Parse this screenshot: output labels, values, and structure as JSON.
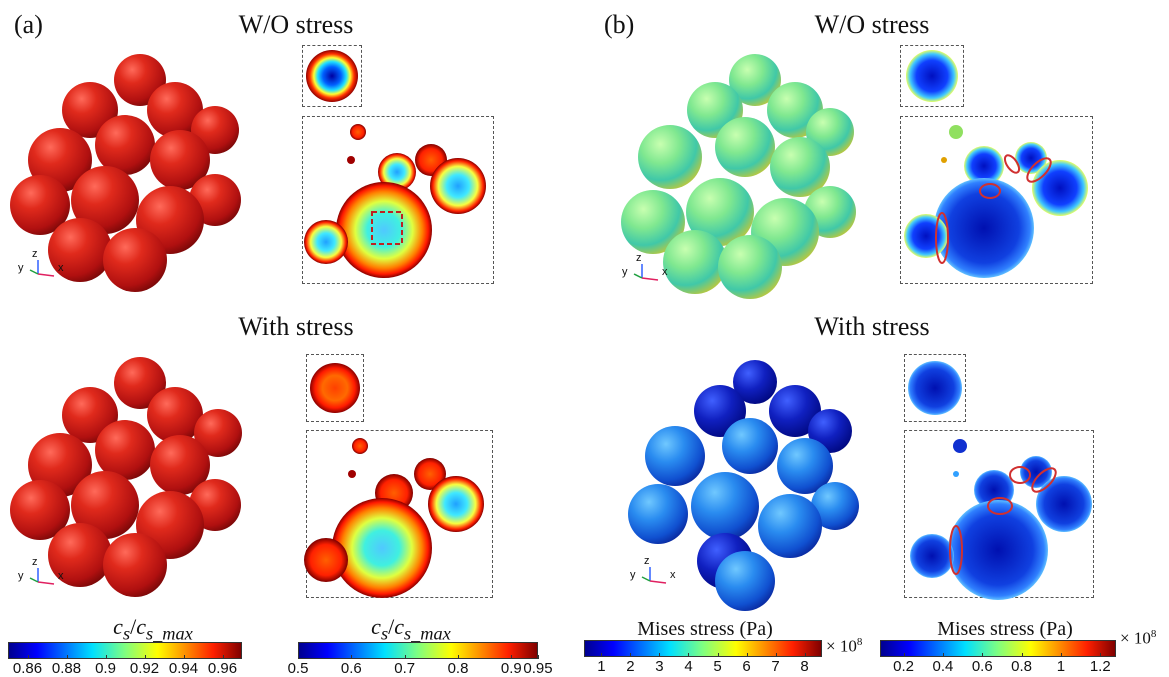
{
  "panel_a": {
    "label": "(a)",
    "title_top": "W/O stress",
    "title_bottom": "With stress",
    "colorbar_left": {
      "title_var": "c",
      "title_sub": "s",
      "title_var2": "c",
      "title_sub2": "s_max",
      "ticks": [
        "0.86",
        "0.88",
        "0.9",
        "0.92",
        "0.94",
        "0.96"
      ],
      "range": [
        0.85,
        0.97
      ]
    },
    "colorbar_right": {
      "title_var": "c",
      "title_sub": "s",
      "title_var2": "c",
      "title_sub2": "s_max",
      "ticks": [
        "0.5",
        "0.6",
        "0.7",
        "0.8",
        "0.9",
        "0.95"
      ],
      "range": [
        0.5,
        0.95
      ]
    }
  },
  "panel_b": {
    "label": "(b)",
    "title_top": "W/O stress",
    "title_bottom": "With stress",
    "colorbar_left": {
      "title": "Mises stress (Pa)",
      "ticks": [
        "1",
        "2",
        "3",
        "4",
        "5",
        "6",
        "7",
        "8"
      ],
      "multiplier": "× 10",
      "exponent": "8",
      "range": [
        0.4,
        8.6
      ]
    },
    "colorbar_right": {
      "title": "Mises stress (Pa)",
      "ticks": [
        "0.2",
        "0.4",
        "0.6",
        "0.8",
        "1",
        "1.2"
      ],
      "multiplier": "× 10",
      "exponent": "8",
      "range": [
        0.08,
        1.28
      ]
    }
  },
  "axis_triad": {
    "y": "y",
    "z": "z",
    "x": "x"
  },
  "colors": {
    "jet_dark_blue": "#00008f",
    "jet_blue": "#0040ff",
    "jet_cyan": "#00e0ff",
    "jet_yellow": "#f5f500",
    "jet_red": "#e00000",
    "jet_dark_red": "#800000",
    "particle_red": "#c81414",
    "highlight_ellipse": "#d03030"
  }
}
